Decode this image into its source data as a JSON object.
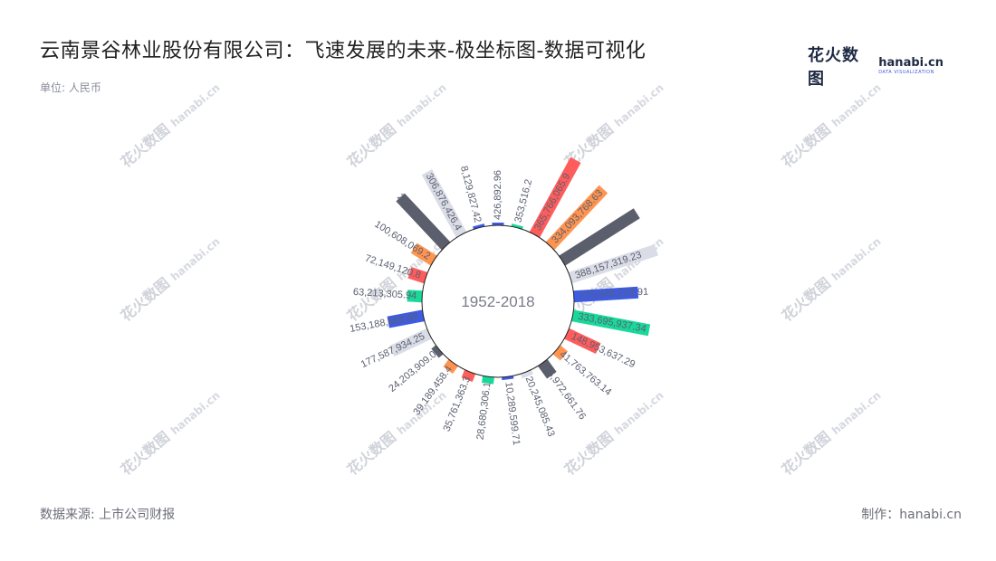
{
  "header": {
    "title": "云南景谷林业股份有限公司：飞速发展的未来-极坐标图-数据可视化",
    "unit": "单位: 人民币"
  },
  "logo": {
    "cn": "花火数图",
    "en": "hanabi.cn",
    "tagline": "DATA VISUALIZATION"
  },
  "watermark": {
    "cn": "花火数图",
    "en": "hanabi.cn"
  },
  "footer": {
    "source": "数据来源: 上市公司财报",
    "maker": "制作：hanabi.cn"
  },
  "chart_data": {
    "type": "bar",
    "subtype": "polar-radial",
    "center_label": "1952-2018",
    "labels": [
      "426,892.96",
      "353,516.2",
      "365,766,065.9",
      "334,093,768.63",
      "378,564,132.06",
      "388,157,319.23",
      "275,648,218.91",
      "333,695,937.34",
      "148,953,637.29",
      "41,763,763.14",
      "65,972,661.76",
      "20,245,085.43",
      "10,289,599.71",
      "28,680,306.1",
      "35,761,363.3",
      "39,189,458.4",
      "24,203,909.0",
      "177,587,934.25",
      "153,188,668.66",
      "63,213,305.94",
      "72,149,120.8",
      "100,608,069.2",
      "285,717,841.9",
      "306,876,426.4",
      "8,129,827.42"
    ],
    "values": [
      426892.96,
      353516.2,
      365766065.9,
      334093768.63,
      378564132.06,
      388157319.23,
      275648218.91,
      333695937.34,
      148953637.29,
      41763763.14,
      65972661.76,
      20245085.43,
      10289599.71,
      28680306.1,
      35761363.3,
      39189458.4,
      24203909.0,
      177587934.25,
      153188668.66,
      63213305.94,
      72149120.8,
      100608069.2,
      285717841.9,
      306876426.4,
      8129827.42
    ],
    "palette": [
      "#3d5be3",
      "#19d99a",
      "#ff5c5c",
      "#ff9450",
      "#5b5e6b",
      "#dadde6"
    ],
    "label_color": "#5b6070"
  }
}
